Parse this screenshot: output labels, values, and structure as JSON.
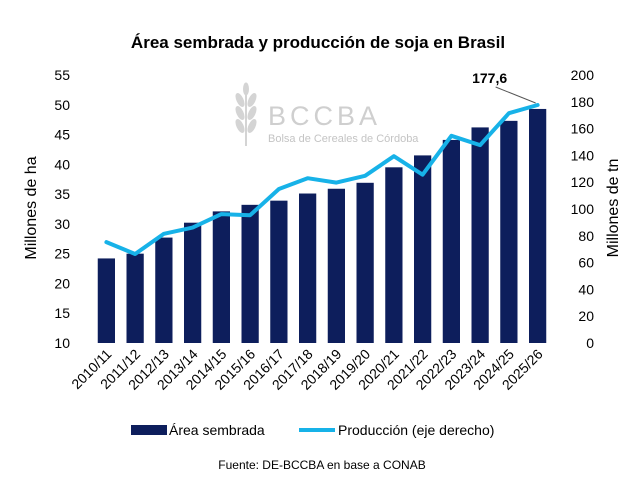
{
  "colors": {
    "bar": "#0d1e5c",
    "line": "#17b2e8",
    "text": "#000000",
    "watermark": "#cfcfcf"
  },
  "watermark": {
    "logo_text": "BCCBA",
    "subtitle": "Bolsa de Cereales de Córdoba",
    "icon": "wheat-icon"
  },
  "footer": {
    "source": "Fuente: DE-BCCBA en base a CONAB"
  },
  "chart_data": {
    "type": "bar",
    "title": "Área sembrada y producción de soja en Brasil",
    "categories": [
      "2010/11",
      "2011/12",
      "2012/13",
      "2013/14",
      "2014/15",
      "2015/16",
      "2016/17",
      "2017/18",
      "2018/19",
      "2019/20",
      "2020/21",
      "2021/22",
      "2022/23",
      "2023/24",
      "2024/25",
      "2025/26"
    ],
    "ylabel": "Millones de ha",
    "y2label": "Millones de tn",
    "ylim": [
      10,
      55
    ],
    "yticks": [
      10,
      15,
      20,
      25,
      30,
      35,
      40,
      45,
      50,
      55
    ],
    "y2lim": [
      0,
      200
    ],
    "y2ticks": [
      0,
      20,
      40,
      60,
      80,
      100,
      120,
      140,
      160,
      180,
      200
    ],
    "grid": false,
    "legend_position": "bottom",
    "series": [
      {
        "name": "Área sembrada",
        "type": "bar",
        "axis": "left",
        "values": [
          24.2,
          25.0,
          27.7,
          30.2,
          32.1,
          33.2,
          33.9,
          35.1,
          35.9,
          36.9,
          39.5,
          41.5,
          44.1,
          46.2,
          47.3,
          49.3
        ]
      },
      {
        "name": "Producción (eje derecho)",
        "type": "line",
        "axis": "right",
        "values": [
          75.3,
          66.4,
          81.5,
          86.1,
          96.2,
          95.4,
          114.9,
          123.0,
          119.7,
          124.8,
          139.4,
          125.6,
          154.6,
          147.7,
          171.5,
          177.6
        ]
      }
    ],
    "annotations": [
      {
        "text": "177,6",
        "category": "2025/26",
        "series": "Producción (eje derecho)"
      }
    ]
  }
}
